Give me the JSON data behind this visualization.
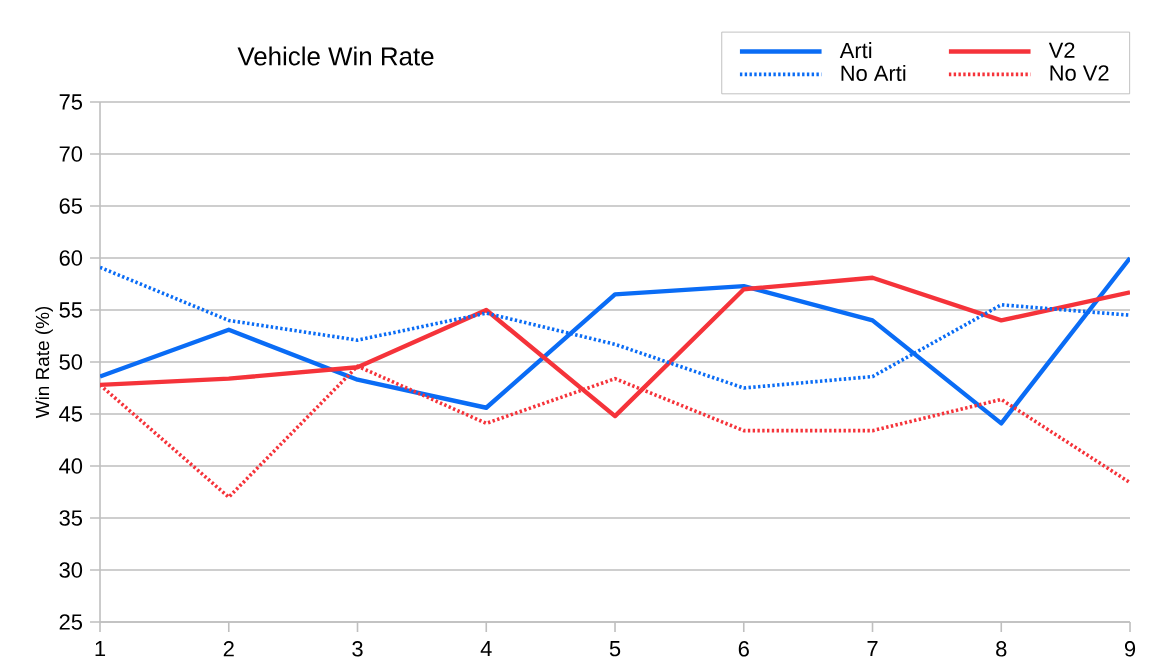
{
  "chart_data": {
    "type": "line",
    "title": "Vehicle Win Rate",
    "ylabel": "Win Rate (%)",
    "x": [
      1,
      2,
      3,
      4,
      5,
      6,
      7,
      8,
      9
    ],
    "xlim": [
      1,
      9
    ],
    "xticks": [
      1,
      2,
      3,
      4,
      5,
      6,
      7,
      8,
      9
    ],
    "ylim": [
      25,
      75
    ],
    "yticks": [
      25,
      30,
      35,
      40,
      45,
      50,
      55,
      60,
      65,
      70,
      75
    ],
    "grid": "y",
    "legend": "top right",
    "series": [
      {
        "name": "Arti",
        "color": "#0a6cf5",
        "line_style": "solid",
        "values": [
          48.6,
          53.1,
          48.3,
          45.6,
          56.5,
          57.3,
          54.0,
          44.1,
          60.0
        ]
      },
      {
        "name": "V2",
        "color": "#f5333a",
        "line_style": "solid",
        "values": [
          47.8,
          48.4,
          49.5,
          55.0,
          44.8,
          57.0,
          58.1,
          54.0,
          56.7
        ]
      },
      {
        "name": "No Arti",
        "color": "#0a6cf5",
        "line_style": "dotted",
        "values": [
          59.1,
          54.0,
          52.1,
          54.7,
          51.7,
          47.5,
          48.6,
          55.5,
          54.5
        ]
      },
      {
        "name": "No V2",
        "color": "#f5333a",
        "line_style": "dotted",
        "values": [
          47.8,
          37.0,
          49.6,
          44.1,
          48.4,
          43.4,
          43.4,
          46.4,
          38.4
        ]
      }
    ]
  }
}
